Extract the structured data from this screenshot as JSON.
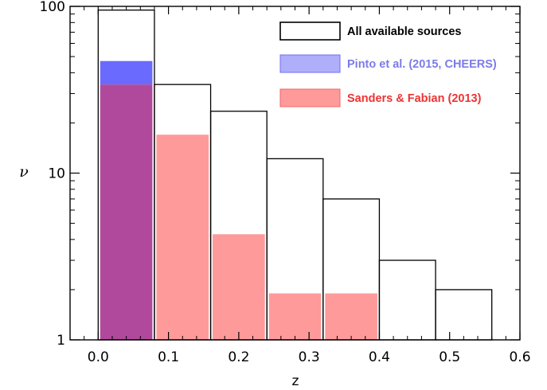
{
  "chart_data": {
    "type": "bar",
    "title": "",
    "xlabel": "z",
    "ylabel": "ν",
    "xlim": [
      -0.04,
      0.6
    ],
    "ylim": [
      1,
      100
    ],
    "yscale": "log",
    "x_ticks": [
      "0.0",
      "0.1",
      "0.2",
      "0.3",
      "0.4",
      "0.5",
      "0.6"
    ],
    "y_ticks": [
      "1",
      "10",
      "100"
    ],
    "bin_edges": [
      0.0,
      0.08,
      0.16,
      0.24,
      0.32,
      0.4,
      0.48,
      0.56
    ],
    "legend_position": "top-right",
    "series": [
      {
        "name": "All available sources",
        "style": "outline",
        "color": "#000000",
        "values": [
          95,
          34,
          23.5,
          12.2,
          7,
          3,
          2
        ]
      },
      {
        "name": "Pinto et al. (2015, CHEERS)",
        "style": "filled",
        "color": "#6a6aff",
        "label_color": "#7b7be8",
        "values": [
          47,
          0,
          0,
          0,
          0,
          0,
          0
        ]
      },
      {
        "name": "Sanders & Fabian (2013)",
        "style": "filled",
        "color": "#ff9a9a",
        "label_color": "#ee3333",
        "values": [
          34,
          17,
          4.3,
          1.9,
          1.9,
          0,
          0
        ]
      }
    ],
    "overlap_color": "#b0499b"
  }
}
